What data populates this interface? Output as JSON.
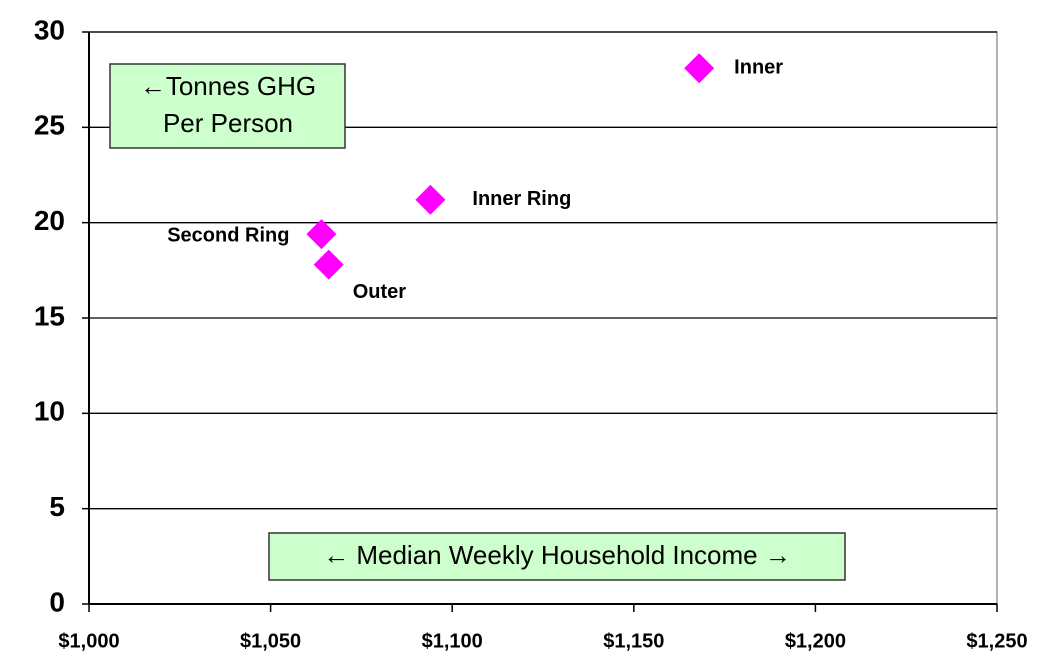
{
  "chart_data": {
    "type": "scatter",
    "x": [
      1168,
      1094,
      1064,
      1066
    ],
    "values": [
      28.1,
      21.2,
      19.4,
      17.8
    ],
    "labels": [
      "Inner",
      "Inner Ring",
      "Second Ring",
      "Outer"
    ],
    "color": "#ff00ff",
    "xlim": [
      1000,
      1250
    ],
    "xticks": [
      {
        "value": 1000,
        "label": "$1,000"
      },
      {
        "value": 1050,
        "label": "$1,050"
      },
      {
        "value": 1100,
        "label": "$1,100"
      },
      {
        "value": 1150,
        "label": "$1,150"
      },
      {
        "value": 1200,
        "label": "$1,200"
      },
      {
        "value": 1250,
        "label": "$1,250"
      }
    ],
    "ylim": [
      0,
      30
    ],
    "yticks": [
      0,
      5,
      10,
      15,
      20,
      25,
      30
    ],
    "grid": true,
    "y_annotation": [
      "←Tonnes GHG",
      "Per Person"
    ],
    "x_annotation": "← Median Weekly Household Income →"
  }
}
